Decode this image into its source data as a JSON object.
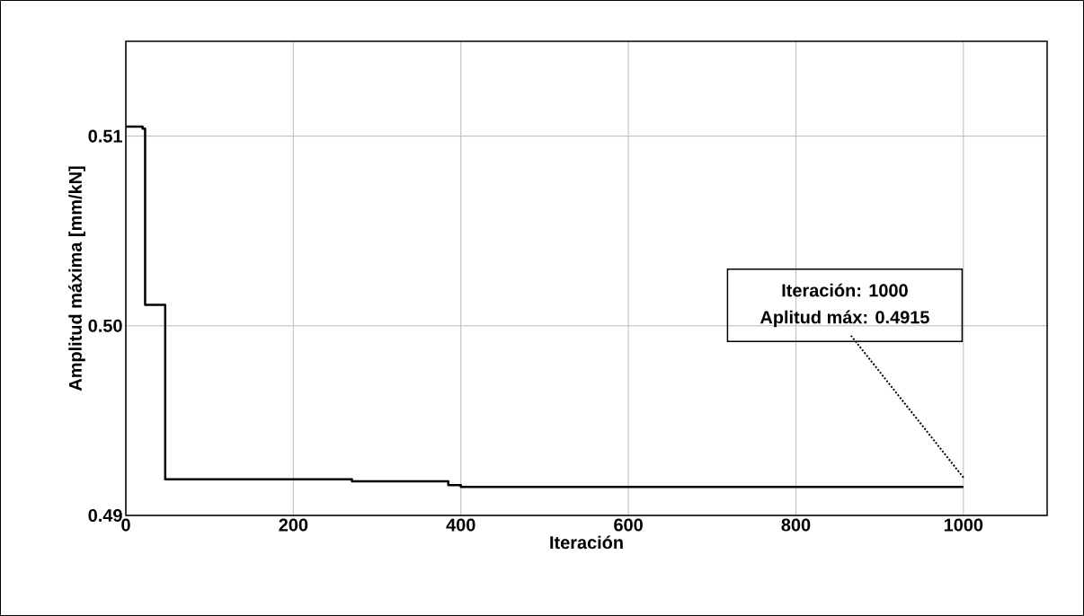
{
  "chart_data": {
    "type": "step",
    "xlabel": "Iteración",
    "ylabel": "Amplitud máxima [mm/kN]",
    "x": [
      0,
      20,
      23,
      47,
      270,
      385,
      400,
      1000
    ],
    "series": [
      {
        "color": "#000000",
        "values": [
          0.5105,
          0.5104,
          0.5011,
          0.4919,
          0.4918,
          0.4916,
          0.4915,
          0.4915
        ]
      }
    ],
    "xlim": [
      0,
      1100
    ],
    "xticks": [
      0,
      200,
      400,
      600,
      800,
      1000
    ],
    "ylim": [
      0.49,
      0.515
    ],
    "yticks": [
      0.49,
      {
        "value": 0.5,
        "label": "0.50"
      },
      0.51
    ],
    "annotations": [
      "Iteración: 1000",
      "Aplitud máx:  0.4915"
    ],
    "grid": true,
    "marker": "none",
    "line_style": "solid"
  }
}
